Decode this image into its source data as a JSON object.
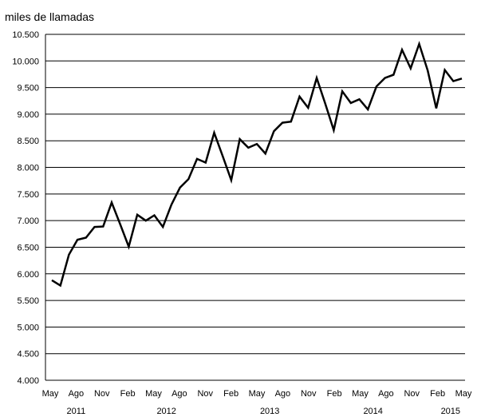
{
  "chart_data": {
    "type": "line",
    "ylabel": "miles de llamadas",
    "ylim": [
      4000,
      10500
    ],
    "yticks": [
      4000,
      4500,
      5000,
      5500,
      6000,
      6500,
      7000,
      7500,
      8000,
      8500,
      9000,
      9500,
      10000,
      10500
    ],
    "ytick_labels": [
      "4.000",
      "4.500",
      "5.000",
      "5.500",
      "6.000",
      "6.500",
      "7.000",
      "7.500",
      "8.000",
      "8.500",
      "9.000",
      "9.500",
      "10.000",
      "10.500"
    ],
    "xtick_labels": [
      "May",
      "Ago",
      "Nov",
      "Feb",
      "May",
      "Ago",
      "Nov",
      "Feb",
      "May",
      "Ago",
      "Nov",
      "Feb",
      "May",
      "Ago",
      "Nov",
      "Feb",
      "May"
    ],
    "year_labels": [
      "2011",
      "2012",
      "2013",
      "2014",
      "2015"
    ],
    "grid": "horizontal",
    "line_color": "#000000",
    "x": [
      "2011-05",
      "2011-06",
      "2011-07",
      "2011-08",
      "2011-09",
      "2011-10",
      "2011-11",
      "2011-12",
      "2012-01",
      "2012-02",
      "2012-03",
      "2012-04",
      "2012-05",
      "2012-06",
      "2012-07",
      "2012-08",
      "2012-09",
      "2012-10",
      "2012-11",
      "2012-12",
      "2013-01",
      "2013-02",
      "2013-03",
      "2013-04",
      "2013-05",
      "2013-06",
      "2013-07",
      "2013-08",
      "2013-09",
      "2013-10",
      "2013-11",
      "2013-12",
      "2014-01",
      "2014-02",
      "2014-03",
      "2014-04",
      "2014-05",
      "2014-06",
      "2014-07",
      "2014-08",
      "2014-09",
      "2014-10",
      "2014-11",
      "2014-12",
      "2015-01",
      "2015-02",
      "2015-03",
      "2015-04",
      "2015-05"
    ],
    "values": [
      5880,
      5780,
      6360,
      6640,
      6680,
      6880,
      6890,
      7340,
      6930,
      6510,
      7110,
      7000,
      7100,
      6880,
      7300,
      7620,
      7780,
      8160,
      8090,
      8650,
      8210,
      7760,
      8530,
      8370,
      8440,
      8260,
      8680,
      8840,
      8860,
      9330,
      9120,
      9680,
      9200,
      8700,
      9430,
      9210,
      9280,
      9090,
      9520,
      9680,
      9740,
      10210,
      9860,
      10320,
      9820,
      9110,
      9830,
      9620,
      9670
    ]
  }
}
